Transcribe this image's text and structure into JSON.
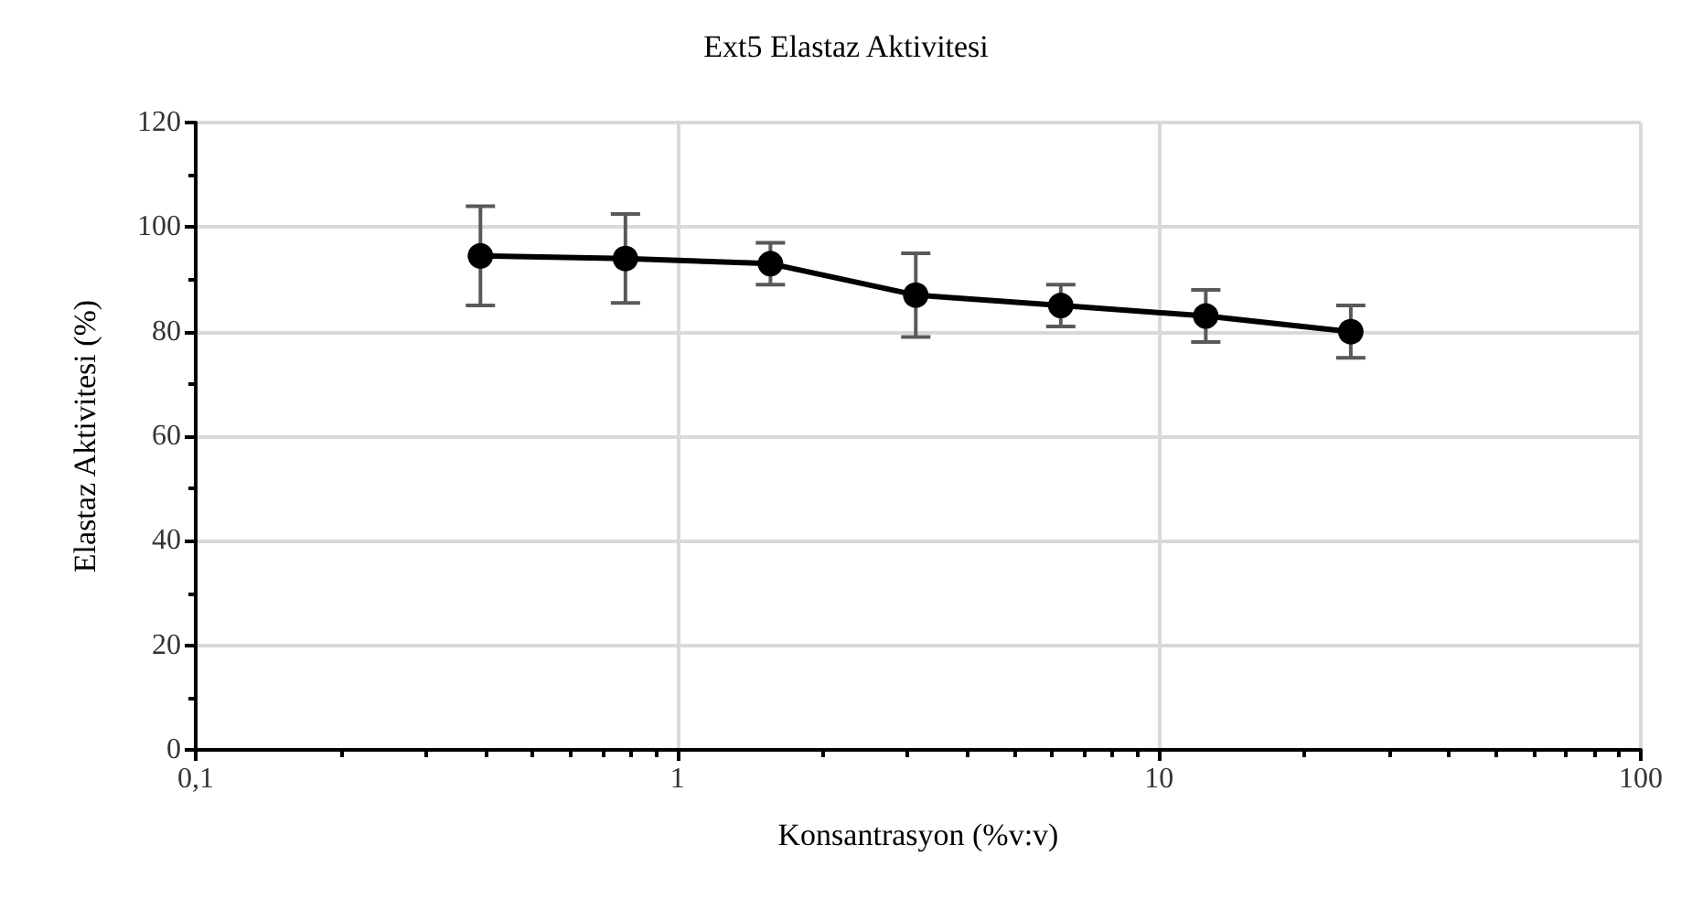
{
  "chart_data": {
    "type": "line",
    "title": "Ext5 Elastaz Aktivitesi",
    "xlabel": "Konsantrasyon (%v:v)",
    "ylabel": "Elastaz Aktivitesi (%)",
    "x": [
      0.39,
      0.78,
      1.56,
      3.125,
      6.25,
      12.5,
      25
    ],
    "series": [
      {
        "color": "#000000",
        "values": [
          94.5,
          94,
          93,
          87,
          85,
          83,
          80
        ],
        "errors": [
          9.5,
          8.5,
          4,
          8,
          4,
          5,
          5
        ]
      }
    ],
    "log": "x",
    "xlim": [
      0.1,
      100
    ],
    "xticks": [
      {
        "value": 0.1,
        "label": "0,1"
      },
      {
        "value": 0.2,
        "label": null
      },
      {
        "value": 0.3,
        "label": null
      },
      {
        "value": 0.4,
        "label": null
      },
      {
        "value": 0.5,
        "label": null
      },
      {
        "value": 0.6,
        "label": null
      },
      {
        "value": 0.7,
        "label": null
      },
      {
        "value": 0.8,
        "label": null
      },
      {
        "value": 0.9,
        "label": null
      },
      1,
      {
        "value": 2,
        "label": null
      },
      {
        "value": 3,
        "label": null
      },
      {
        "value": 4,
        "label": null
      },
      {
        "value": 5,
        "label": null
      },
      {
        "value": 6,
        "label": null
      },
      {
        "value": 7,
        "label": null
      },
      {
        "value": 8,
        "label": null
      },
      {
        "value": 9,
        "label": null
      },
      10,
      {
        "value": 20,
        "label": null
      },
      {
        "value": 30,
        "label": null
      },
      {
        "value": 40,
        "label": null
      },
      {
        "value": 50,
        "label": null
      },
      {
        "value": 60,
        "label": null
      },
      {
        "value": 70,
        "label": null
      },
      {
        "value": 80,
        "label": null
      },
      {
        "value": 90,
        "label": null
      },
      100
    ],
    "ylim": [
      0,
      120
    ],
    "yticks": [
      0,
      {
        "value": 10,
        "label": null
      },
      20,
      {
        "value": 30,
        "label": null
      },
      40,
      {
        "value": 50,
        "label": null
      },
      60,
      {
        "value": 70,
        "label": null
      },
      80,
      {
        "value": 90,
        "label": null
      },
      100,
      {
        "value": 110,
        "label": null
      },
      120
    ],
    "grid": true,
    "marker": "circle",
    "line_style": "solid"
  }
}
